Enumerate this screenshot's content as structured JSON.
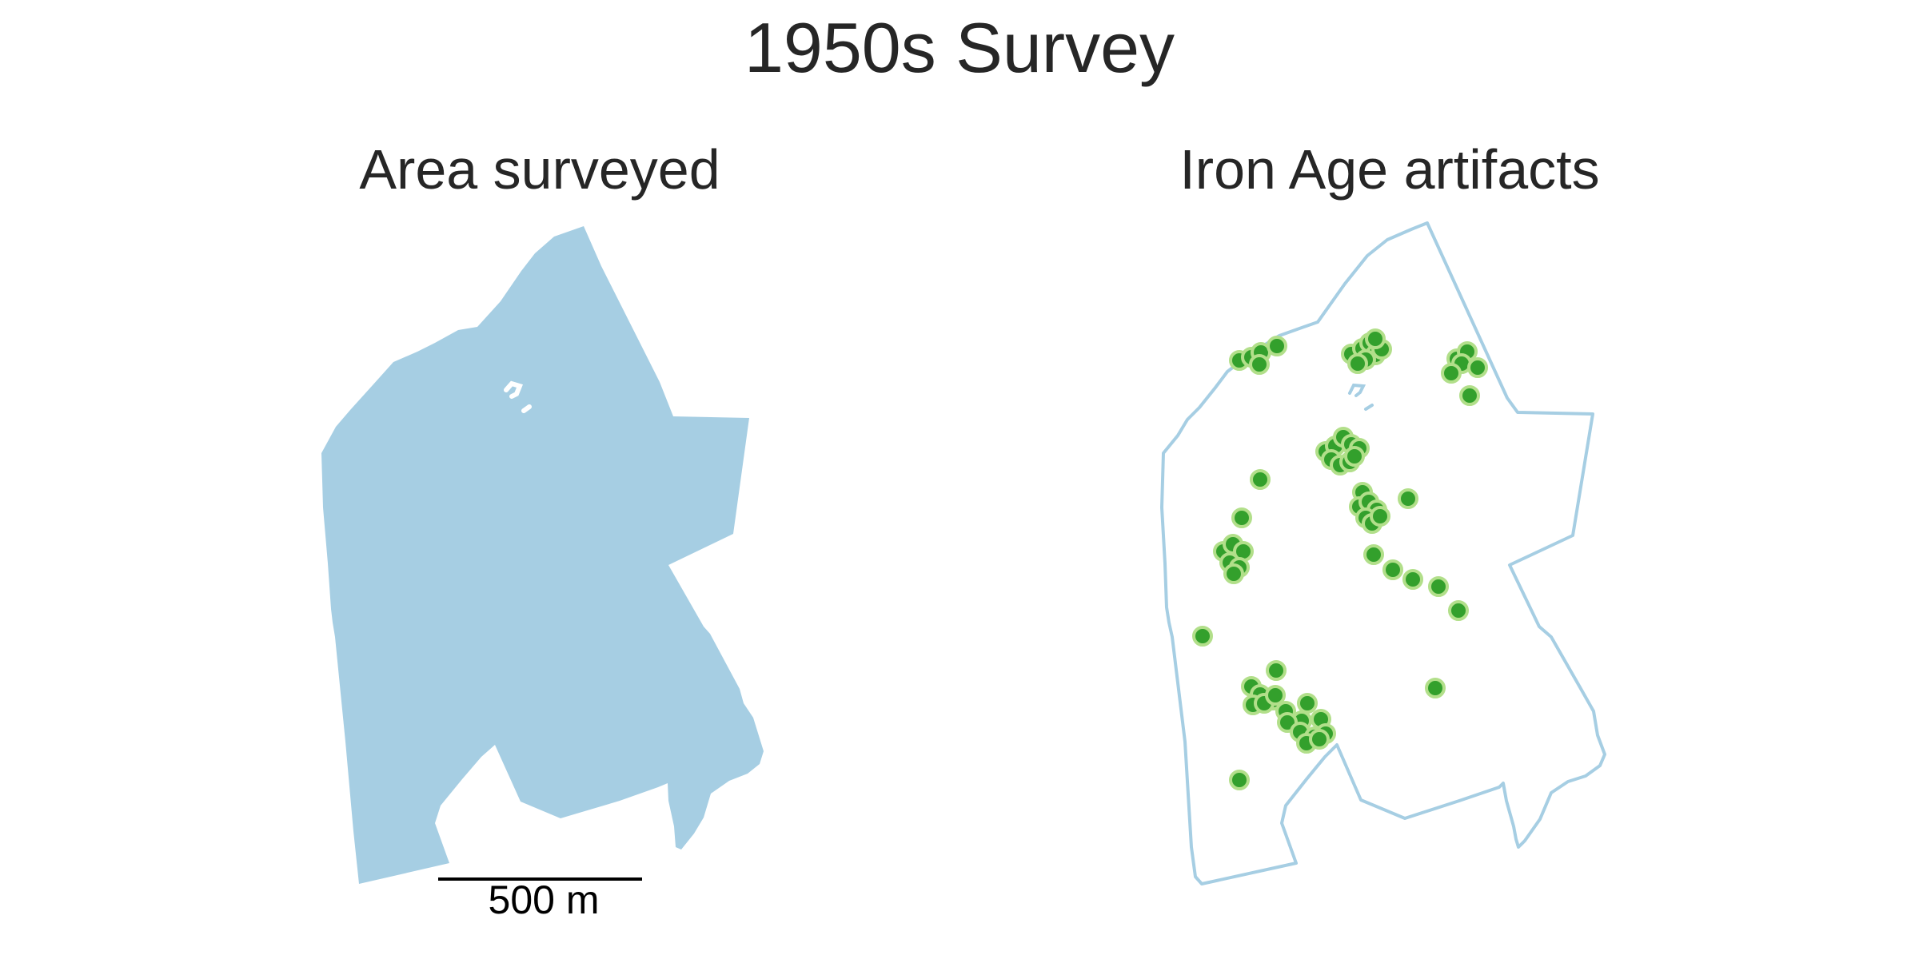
{
  "figure": {
    "title": "1950s Survey"
  },
  "panels": {
    "left": {
      "title": "Area surveyed"
    },
    "right": {
      "title": "Iron Age artifacts"
    }
  },
  "scalebar": {
    "label": "500 m"
  },
  "colors": {
    "area_fill": "#a6cee3",
    "outline": "#a6cee3",
    "point_fill": "#33a02c",
    "point_edge": "#b2df8a",
    "scalebar": "#000000"
  },
  "legend": null
}
